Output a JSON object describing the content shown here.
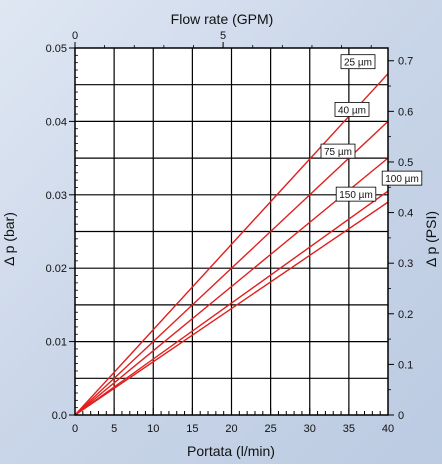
{
  "chart_data": {
    "type": "line",
    "xlabel": "Portata (l/min)",
    "x_top_label": "Flow rate (GPM)",
    "ylabel_left": "Δ p (bar)",
    "ylabel_right": "Δ p (PSI)",
    "xlim": [
      0,
      40
    ],
    "ylim": [
      0,
      0.05
    ],
    "x_ticks": [
      "0",
      "5",
      "10",
      "15",
      "20",
      "25",
      "30",
      "35",
      "40"
    ],
    "y_ticks": [
      "0.0",
      "0.01",
      "0.02",
      "0.03",
      "0.04",
      "0.05"
    ],
    "x_top_ticks": [
      "0",
      "5"
    ],
    "y_right_ticks": [
      "0",
      "0.1",
      "0.2",
      "0.3",
      "0.4",
      "0.5",
      "0.6",
      "0.7"
    ],
    "grid": true,
    "colors": {
      "series": "#e0201e",
      "grid": "#000000",
      "background": "#ffffff",
      "page_bg": "#cfd9ea"
    },
    "series": [
      {
        "name": "25 µm",
        "x": [
          0,
          40
        ],
        "y": [
          0,
          0.0465
        ]
      },
      {
        "name": "40 µm",
        "x": [
          0,
          40
        ],
        "y": [
          0,
          0.04
        ]
      },
      {
        "name": "75 µm",
        "x": [
          0,
          40
        ],
        "y": [
          0,
          0.035
        ]
      },
      {
        "name": "100 µm",
        "x": [
          0,
          40
        ],
        "y": [
          0,
          0.0305
        ]
      },
      {
        "name": "150 µm",
        "x": [
          0,
          40
        ],
        "y": [
          0,
          0.029
        ]
      }
    ]
  }
}
